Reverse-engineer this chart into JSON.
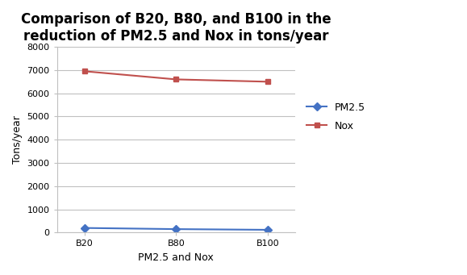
{
  "title": "Comparison of B20, B80, and B100 in the\nreduction of PM2.5 and Nox in tons/year",
  "xlabel": "PM2.5 and Nox",
  "ylabel": "Tons/year",
  "categories": [
    "B20",
    "B80",
    "B100"
  ],
  "pm25_values": [
    200,
    150,
    120
  ],
  "nox_values": [
    6950,
    6600,
    6500
  ],
  "pm25_color": "#4472C4",
  "nox_color": "#C0504D",
  "pm25_label": "PM2.5",
  "nox_label": "Nox",
  "ylim": [
    0,
    8000
  ],
  "yticks": [
    0,
    1000,
    2000,
    3000,
    4000,
    5000,
    6000,
    7000,
    8000
  ],
  "background_color": "#FFFFFF",
  "plot_bg_color": "#FFFFFF",
  "title_fontsize": 12,
  "axis_label_fontsize": 9,
  "tick_fontsize": 8,
  "legend_fontsize": 9
}
